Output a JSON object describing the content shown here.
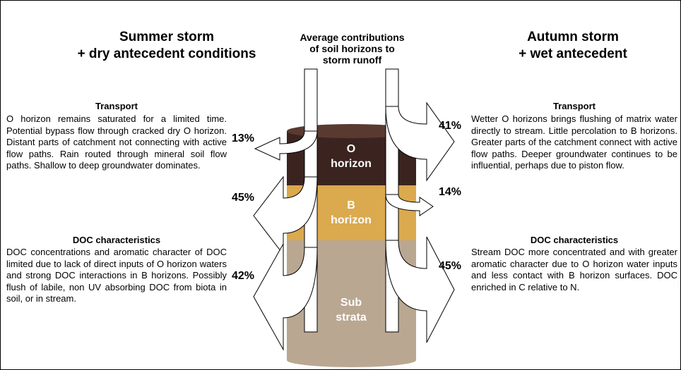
{
  "left": {
    "title": [
      "Summer storm",
      "+ dry antecedent conditions"
    ],
    "transport": {
      "heading": "Transport",
      "text": "O horizon remains saturated for a limited time. Potential bypass flow through cracked dry O horizon. Distant parts of catchment not connecting with active flow paths. Rain routed through mineral soil flow paths. Shallow to deep groundwater dominates."
    },
    "doc": {
      "heading": "DOC characteristics",
      "text": "DOC concentrations and aromatic character of DOC limited due to lack of direct inputs of O horizon waters and strong DOC interactions in B horizons. Possibly flush of labile, non UV absorbing DOC from biota in soil, or in stream."
    },
    "percentages": [
      "13%",
      "45%",
      "42%"
    ]
  },
  "center": {
    "title": [
      "Average contributions",
      "of soil horizons to",
      "storm runoff"
    ],
    "horizons": [
      [
        "O",
        "horizon"
      ],
      [
        "B",
        "horizon"
      ],
      [
        "Sub",
        "strata"
      ]
    ]
  },
  "right": {
    "title": [
      "Autumn storm",
      "+ wet antecedent"
    ],
    "transport": {
      "heading": "Transport",
      "text": "Wetter O horizons brings flushing of matrix water directly to stream. Little percolation to B horizons. Greater parts of the catchment connect with active flow paths. Deeper groundwater continues to be influential, perhaps due to piston flow."
    },
    "doc": {
      "heading": "DOC characteristics",
      "text": "Stream DOC more concentrated and with greater aromatic character due to O horizon water inputs and less contact with B horizon surfaces. DOC enriched in C relative to N."
    },
    "percentages": [
      "41%",
      "14%",
      "45%"
    ]
  }
}
